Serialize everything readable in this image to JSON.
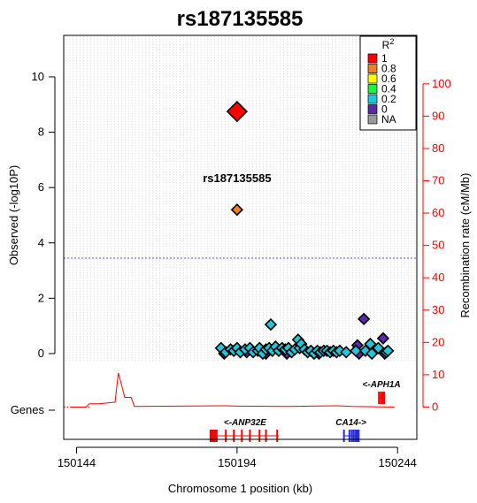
{
  "chart_data": {
    "type": "scatter",
    "title": "rs187135585",
    "xlabel": "Chromosome 1 position (kb)",
    "ylabel": "Observed (-log10P)",
    "y2label": "Recombination rate (cM/Mb)",
    "xlim": [
      150140,
      150250
    ],
    "ylim": [
      -3.1,
      11.5
    ],
    "y2lim": [
      -10,
      115
    ],
    "x_ticks": [
      150144,
      150194,
      150244
    ],
    "y_ticks": [
      0,
      2,
      4,
      6,
      8,
      10
    ],
    "y2_ticks": [
      0,
      10,
      20,
      30,
      40,
      50,
      60,
      70,
      80,
      90,
      100
    ],
    "genes_axis_label": "Genes",
    "significance_threshold": 3.45,
    "threshold_color": "#5555dd",
    "recomb_color": "#ff0000",
    "lead_snp": {
      "label": "rs187135585",
      "x": 150194,
      "y": 8.75,
      "color": "#ff0000"
    },
    "snp_label": "rs187135585",
    "series": [
      {
        "r2_bin": "0.8",
        "color": "#f07e26",
        "points": [
          [
            150194,
            5.2
          ]
        ]
      },
      {
        "r2_bin": "0.2",
        "color": "#1ec8d9",
        "points": [
          [
            150189,
            0.2
          ],
          [
            150190.5,
            0.05
          ],
          [
            150192,
            0.15
          ],
          [
            150193,
            0.1
          ],
          [
            150194,
            0.2
          ],
          [
            150195,
            0.05
          ],
          [
            150196.5,
            0.15
          ],
          [
            150198,
            0.2
          ],
          [
            150199,
            0.05
          ],
          [
            150200.5,
            0.1
          ],
          [
            150201,
            0.2
          ],
          [
            150202,
            0.0
          ],
          [
            150203,
            0.15
          ],
          [
            150204,
            0.2
          ],
          [
            150204.5,
            1.05
          ],
          [
            150205,
            0.1
          ],
          [
            150206,
            0.25
          ],
          [
            150207,
            0.1
          ],
          [
            150208,
            0.2
          ],
          [
            150209,
            0.15
          ],
          [
            150210,
            0.2
          ],
          [
            150211,
            0.05
          ],
          [
            150212,
            0.15
          ],
          [
            150213,
            0.5
          ],
          [
            150213.5,
            0.2
          ],
          [
            150214,
            0.35
          ],
          [
            150215,
            0.15
          ],
          [
            150216,
            0.05
          ],
          [
            150217,
            0.1
          ],
          [
            150218,
            0.0
          ],
          [
            150219,
            0.1
          ],
          [
            150220,
            0.05
          ],
          [
            150221,
            0.1
          ],
          [
            150222,
            0.1
          ],
          [
            150223,
            0.05
          ],
          [
            150224,
            0.1
          ],
          [
            150225,
            0.05
          ],
          [
            150226,
            0.1
          ],
          [
            150228,
            0.05
          ],
          [
            150231,
            0.1
          ],
          [
            150234,
            0.1
          ],
          [
            150235.5,
            0.35
          ],
          [
            150236,
            0.0
          ],
          [
            150238,
            0.2
          ],
          [
            150240.5,
            0.05
          ],
          [
            150241,
            0.1
          ]
        ]
      },
      {
        "r2_bin": "0",
        "color": "#5a2aa8",
        "points": [
          [
            150190,
            0.0
          ],
          [
            150197,
            0.05
          ],
          [
            150203,
            0.0
          ],
          [
            150209.5,
            0.0
          ],
          [
            150219.5,
            0.0
          ],
          [
            150231.5,
            0.3
          ],
          [
            150232,
            0.0
          ],
          [
            150233.5,
            1.25
          ],
          [
            150239.5,
            0.55
          ],
          [
            150240,
            0.0
          ]
        ]
      }
    ],
    "recombination": [
      [
        150142,
        0
      ],
      [
        150147,
        0
      ],
      [
        150148,
        1
      ],
      [
        150151,
        1
      ],
      [
        150156,
        1.5
      ],
      [
        150157,
        10.5
      ],
      [
        150158,
        7
      ],
      [
        150159,
        3
      ],
      [
        150161,
        3
      ],
      [
        150162,
        0.2
      ],
      [
        150190,
        0.4
      ],
      [
        150194,
        0.3
      ],
      [
        150210,
        0.2
      ],
      [
        150225,
        0.4
      ],
      [
        150230,
        0.2
      ],
      [
        150243,
        0
      ]
    ],
    "recomb_dotted_start": [
      150140,
      150148
    ],
    "legend": {
      "title": "R2",
      "title_base": "R",
      "title_sup": "2",
      "entries": [
        {
          "label": "1",
          "color": "#ff0000"
        },
        {
          "label": "0.8",
          "color": "#f07e26"
        },
        {
          "label": "0.6",
          "color": "#ffff00"
        },
        {
          "label": "0.4",
          "color": "#22ee44"
        },
        {
          "label": "0.2",
          "color": "#1ec8d9"
        },
        {
          "label": "0",
          "color": "#5a2aa8"
        },
        {
          "label": "NA",
          "color": "#9a9a9a"
        }
      ],
      "placement": "top-right"
    },
    "genes": [
      {
        "name": "<-APH1A",
        "start": 150238,
        "end": 150240,
        "row": 0,
        "color": "#ff0000",
        "exons": [
          150238.2,
          150238.8,
          150239.3,
          150239.8
        ]
      },
      {
        "name": "<-ANP32E",
        "start": 150186,
        "end": 150207,
        "row": 1,
        "color": "#ff0000",
        "exons": [
          150186,
          150186.4,
          150186.8,
          150187.2,
          150190.5,
          150193,
          150195.5,
          150198,
          150201,
          150203,
          150206.5
        ]
      },
      {
        "name": "CA14->",
        "start": 150227,
        "end": 150232,
        "row": 1,
        "color": "#2a2ae0",
        "exons": [
          150227.3,
          150229,
          150229.7,
          150230.3,
          150230.9,
          150231.4,
          150231.9
        ]
      }
    ]
  }
}
